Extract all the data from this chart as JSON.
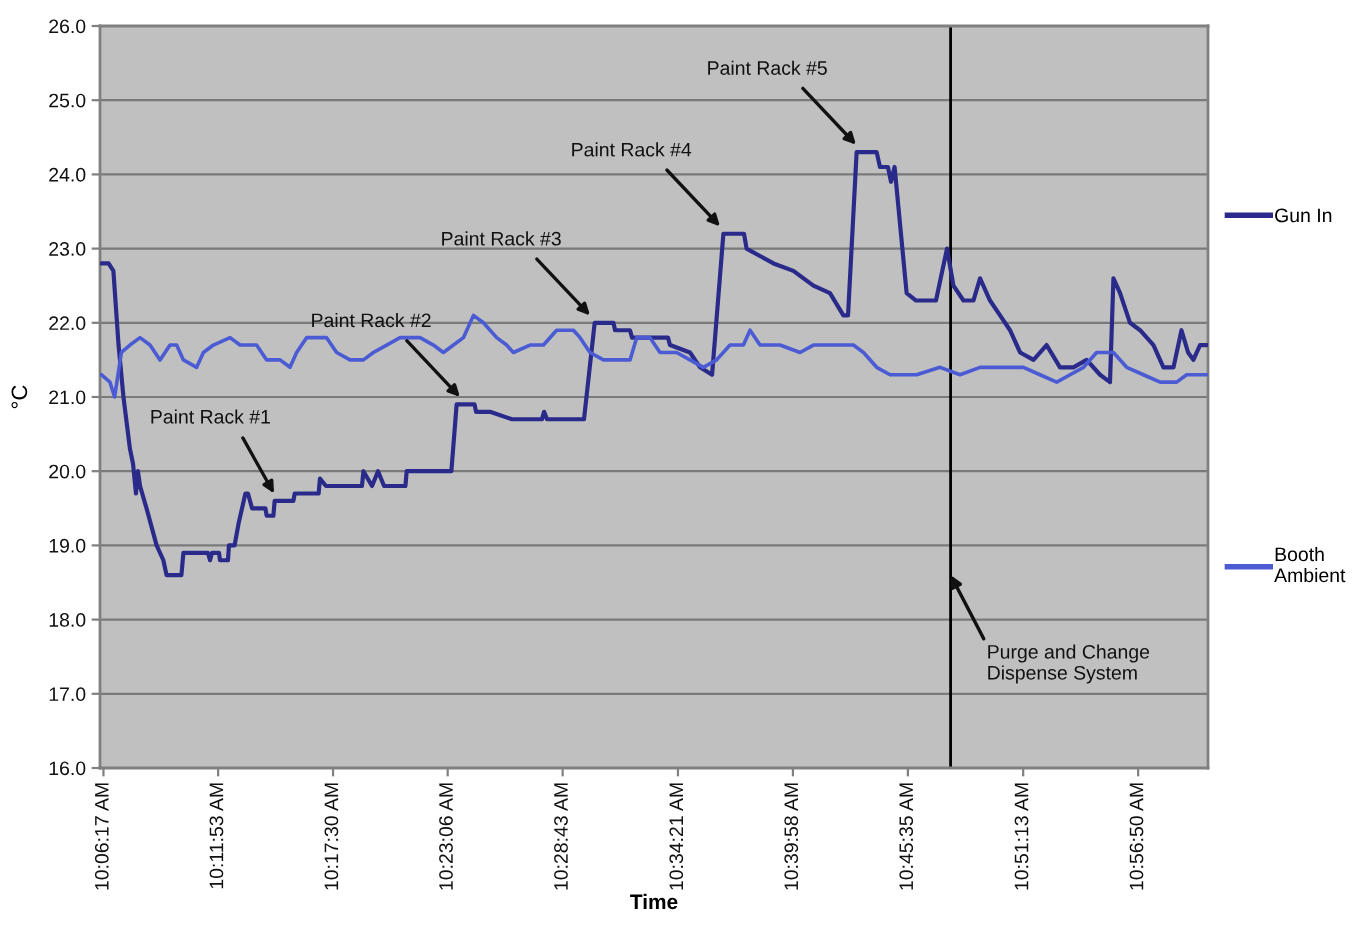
{
  "chart_data": {
    "type": "line",
    "xlabel": "Time",
    "ylabel": "°C",
    "xlim": [
      10.1019,
      11.0041
    ],
    "xticks": [
      {
        "value": 10.10472,
        "label": "10:06:17 AM"
      },
      {
        "value": 10.19806,
        "label": "10:11:53 AM"
      },
      {
        "value": 10.29167,
        "label": "10:17:30 AM"
      },
      {
        "value": 10.385,
        "label": "10:23:06 AM"
      },
      {
        "value": 10.47861,
        "label": "10:28:43 AM"
      },
      {
        "value": 10.5725,
        "label": "10:34:21 AM"
      },
      {
        "value": 10.66611,
        "label": "10:39:58 AM"
      },
      {
        "value": 10.75972,
        "label": "10:45:35 AM"
      },
      {
        "value": 10.85361,
        "label": "10:51:13 AM"
      },
      {
        "value": 10.94722,
        "label": "10:56:50 AM"
      }
    ],
    "ylim": [
      16,
      26
    ],
    "yticks": [
      {
        "value": 16,
        "label": "16.0"
      },
      {
        "value": 17,
        "label": "17.0"
      },
      {
        "value": 18,
        "label": "18.0"
      },
      {
        "value": 19,
        "label": "19.0"
      },
      {
        "value": 20,
        "label": "20.0"
      },
      {
        "value": 21,
        "label": "21.0"
      },
      {
        "value": 22,
        "label": "22.0"
      },
      {
        "value": 23,
        "label": "23.0"
      },
      {
        "value": 24,
        "label": "24.0"
      },
      {
        "value": 25,
        "label": "25.0"
      },
      {
        "value": 26,
        "label": "26.0"
      }
    ],
    "grid": "y",
    "legend": "right",
    "series": [
      {
        "name": "Gun In",
        "color": "#2a2a8a",
        "x": [
          10.103,
          10.1089,
          10.1128,
          10.117,
          10.121,
          10.1263,
          10.1288,
          10.1312,
          10.1328,
          10.1345,
          10.1398,
          10.148,
          10.1535,
          10.1561,
          10.1682,
          10.1698,
          10.1898,
          10.1915,
          10.1931,
          10.1988,
          10.1996,
          10.2061,
          10.2069,
          10.2115,
          10.2148,
          10.2203,
          10.2224,
          10.2257,
          10.2366,
          10.2376,
          10.2431,
          10.2441,
          10.2594,
          10.2604,
          10.2799,
          10.281,
          10.2859,
          10.3152,
          10.3164,
          10.3234,
          10.3283,
          10.3332,
          10.3506,
          10.3516,
          10.388,
          10.3923,
          10.4069,
          10.4081,
          10.4195,
          10.4374,
          10.4618,
          10.4635,
          10.4659,
          10.496,
          10.5047,
          10.52,
          10.5213,
          10.5335,
          10.5351,
          10.5644,
          10.566,
          10.5823,
          10.5905,
          10.6003,
          10.6095,
          10.6263,
          10.6284,
          10.6393,
          10.6503,
          10.6665,
          10.6828,
          10.6963,
          10.7072,
          10.711,
          10.718,
          10.7343,
          10.737,
          10.7435,
          10.746,
          10.7489,
          10.7587,
          10.7664,
          10.7826,
          10.7916,
          10.7968,
          10.805,
          10.8131,
          10.8185,
          10.8266,
          10.8348,
          10.8429,
          10.8511,
          10.862,
          10.8727,
          10.8836,
          10.8945,
          10.9053,
          10.9162,
          10.9243,
          10.9271,
          10.9325,
          10.9406,
          10.9488,
          10.9597,
          10.9678,
          10.976,
          10.9825,
          10.9879,
          10.9922,
          10.9976,
          11.003
        ],
        "values": [
          22.8,
          22.8,
          22.7,
          21.7,
          21.0,
          20.3,
          20.1,
          19.7,
          20.0,
          19.8,
          19.5,
          19.0,
          18.8,
          18.6,
          18.6,
          18.9,
          18.9,
          18.8,
          18.9,
          18.9,
          18.8,
          18.8,
          19.0,
          19.0,
          19.3,
          19.7,
          19.7,
          19.5,
          19.5,
          19.4,
          19.4,
          19.6,
          19.6,
          19.7,
          19.7,
          19.9,
          19.8,
          19.8,
          20.0,
          19.8,
          20.0,
          19.8,
          19.8,
          20.0,
          20.0,
          20.9,
          20.9,
          20.8,
          20.8,
          20.7,
          20.7,
          20.8,
          20.7,
          20.7,
          22.0,
          22.0,
          21.9,
          21.9,
          21.8,
          21.8,
          21.7,
          21.6,
          21.4,
          21.3,
          23.2,
          23.2,
          23.0,
          22.9,
          22.8,
          22.7,
          22.5,
          22.4,
          22.1,
          22.1,
          24.3,
          24.3,
          24.1,
          24.1,
          23.9,
          24.1,
          22.4,
          22.3,
          22.3,
          23.0,
          22.5,
          22.3,
          22.3,
          22.6,
          22.3,
          22.1,
          21.9,
          21.6,
          21.5,
          21.7,
          21.4,
          21.4,
          21.5,
          21.3,
          21.2,
          22.6,
          22.4,
          22.0,
          21.9,
          21.7,
          21.4,
          21.4,
          21.9,
          21.6,
          21.5,
          21.7,
          21.7
        ]
      },
      {
        "name": "Booth\nAmbient",
        "color": "#4b5bd4",
        "x": [
          10.103,
          10.11,
          10.1138,
          10.1193,
          10.1263,
          10.1345,
          10.1426,
          10.1508,
          10.1589,
          10.1643,
          10.1698,
          10.1806,
          10.1861,
          10.1942,
          10.2078,
          10.2159,
          10.2294,
          10.2376,
          10.2485,
          10.2566,
          10.262,
          10.2701,
          10.2864,
          10.2946,
          10.3055,
          10.3164,
          10.3245,
          10.3353,
          10.3462,
          10.3625,
          10.3734,
          10.3815,
          10.3897,
          10.3978,
          10.406,
          10.4141,
          10.4249,
          10.433,
          10.4385,
          10.452,
          10.463,
          10.4737,
          10.4874,
          10.4928,
          10.5009,
          10.5118,
          10.5226,
          10.5335,
          10.5389,
          10.5498,
          10.5579,
          10.5714,
          10.5823,
          10.5932,
          10.604,
          10.6149,
          10.6258,
          10.6312,
          10.6393,
          10.6556,
          10.6719,
          10.6828,
          10.6936,
          10.7154,
          10.7236,
          10.7343,
          10.7452,
          10.7587,
          10.7669,
          10.7859,
          10.8022,
          10.8185,
          10.8402,
          10.8538,
          10.8673,
          10.8809,
          10.8918,
          10.9027,
          10.9134,
          10.9271,
          10.9379,
          10.9515,
          10.9651,
          10.9786,
          10.9867,
          11.003
        ],
        "values": [
          21.3,
          21.2,
          21.0,
          21.6,
          21.7,
          21.8,
          21.7,
          21.5,
          21.7,
          21.7,
          21.5,
          21.4,
          21.6,
          21.7,
          21.8,
          21.7,
          21.7,
          21.5,
          21.5,
          21.4,
          21.6,
          21.8,
          21.8,
          21.6,
          21.5,
          21.5,
          21.6,
          21.7,
          21.8,
          21.8,
          21.7,
          21.6,
          21.7,
          21.8,
          22.1,
          22.0,
          21.8,
          21.7,
          21.6,
          21.7,
          21.7,
          21.9,
          21.9,
          21.8,
          21.6,
          21.5,
          21.5,
          21.5,
          21.8,
          21.8,
          21.6,
          21.6,
          21.5,
          21.4,
          21.5,
          21.7,
          21.7,
          21.9,
          21.7,
          21.7,
          21.6,
          21.7,
          21.7,
          21.7,
          21.6,
          21.4,
          21.3,
          21.3,
          21.3,
          21.4,
          21.3,
          21.4,
          21.4,
          21.4,
          21.3,
          21.2,
          21.3,
          21.4,
          21.6,
          21.6,
          21.4,
          21.3,
          21.2,
          21.2,
          21.3,
          21.3
        ]
      }
    ],
    "ref_lines": [
      {
        "axis": "x",
        "value": 10.7945,
        "label": "Purge and Change\nDispense System",
        "color": "#000000"
      }
    ],
    "annotations": [
      {
        "text": "Paint Rack #1",
        "x": 10.2436,
        "y": 19.7
      },
      {
        "text": "Paint Rack #2",
        "x": 10.395,
        "y": 21.0
      },
      {
        "text": "Paint Rack #3",
        "x": 10.5009,
        "y": 22.1
      },
      {
        "text": "Paint Rack #4",
        "x": 10.6068,
        "y": 23.3
      },
      {
        "text": "Paint Rack #5",
        "x": 10.7175,
        "y": 24.4
      }
    ]
  }
}
